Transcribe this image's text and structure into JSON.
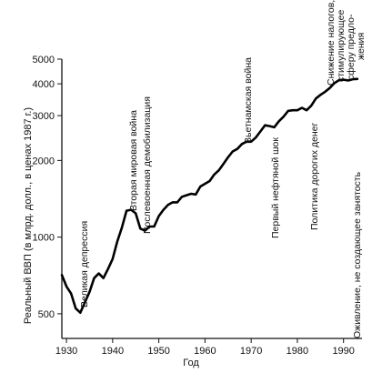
{
  "chart_data": {
    "type": "line",
    "title": "",
    "xlabel": "Год",
    "ylabel": "Реальный ВВП (в млрд. долл., в ценах 1987 г.)",
    "yscale": "log",
    "xlim": [
      1929,
      1994
    ],
    "ylim": [
      400,
      5000
    ],
    "xticks": [
      1930,
      1940,
      1950,
      1960,
      1970,
      1980,
      1990
    ],
    "yticks": [
      500,
      1000,
      2000,
      3000,
      4000,
      5000
    ],
    "grid": false,
    "legend": "none",
    "series": [
      {
        "color": "#000000",
        "x": [
          1929,
          1930,
          1931,
          1932,
          1933,
          1934,
          1935,
          1936,
          1937,
          1938,
          1939,
          1940,
          1941,
          1942,
          1943,
          1944,
          1945,
          1946,
          1947,
          1948,
          1949,
          1950,
          1951,
          1952,
          1953,
          1954,
          1955,
          1956,
          1957,
          1958,
          1959,
          1960,
          1961,
          1962,
          1963,
          1964,
          1965,
          1966,
          1967,
          1968,
          1969,
          1970,
          1971,
          1972,
          1973,
          1974,
          1975,
          1976,
          1977,
          1978,
          1979,
          1980,
          1981,
          1982,
          1983,
          1984,
          1985,
          1986,
          1987,
          1988,
          1989,
          1990,
          1991,
          1992,
          1993
        ],
        "y": [
          710,
          640,
          600,
          525,
          505,
          555,
          610,
          690,
          720,
          690,
          750,
          820,
          960,
          1090,
          1270,
          1280,
          1240,
          1080,
          1060,
          1100,
          1100,
          1210,
          1280,
          1340,
          1370,
          1370,
          1440,
          1460,
          1480,
          1470,
          1580,
          1620,
          1660,
          1760,
          1830,
          1940,
          2060,
          2170,
          2220,
          2320,
          2370,
          2370,
          2460,
          2600,
          2750,
          2730,
          2700,
          2850,
          2970,
          3130,
          3150,
          3150,
          3220,
          3150,
          3280,
          3500,
          3620,
          3720,
          3850,
          4020,
          4130,
          4150,
          4120,
          4170,
          4180
        ]
      }
    ],
    "annotations": [
      "Великая депрессия",
      "Вторая мировая война",
      "Послевоенная демобилизация",
      "Вьетнамская война",
      "Первый нефтяной шок",
      "Политика дорогих денег",
      "Снижение налогов,",
      "стимулирующее",
      "сферу предло-",
      "жения",
      "Оживление, не создающее занятость"
    ]
  }
}
